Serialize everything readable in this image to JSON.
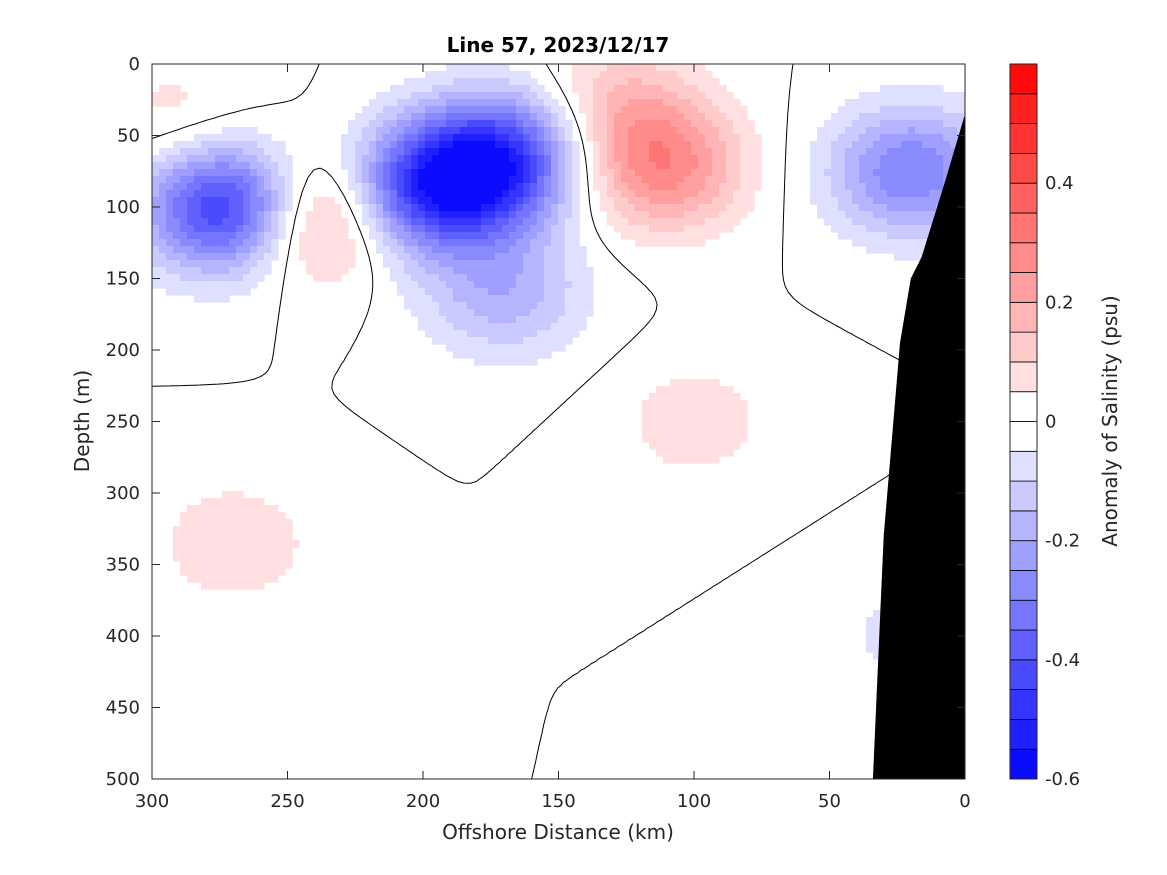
{
  "chart_data": {
    "type": "heatmap",
    "title": "Line 57, 2023/12/17",
    "xlabel": "Offshore Distance (km)",
    "ylabel": "Depth (m)",
    "colorbar_label": "Anomaly of Salinity (psu)",
    "x_reversed": true,
    "y_reversed": true,
    "xlim": [
      0,
      300
    ],
    "ylim": [
      0,
      500
    ],
    "x_ticks": [
      300,
      250,
      200,
      150,
      100,
      50,
      0
    ],
    "y_ticks": [
      0,
      50,
      100,
      150,
      200,
      250,
      300,
      350,
      400,
      450,
      500
    ],
    "clim": [
      -0.6,
      0.6
    ],
    "colorbar_step": 0.05,
    "colorbar_ticks": [
      0.4,
      0.2,
      0,
      -0.2,
      -0.4,
      -0.6
    ],
    "colorbar_tick_labels": [
      "0.4",
      "0.2",
      "0",
      "-0.2",
      "-0.4",
      "-0.6"
    ],
    "colormap": {
      "negative": "#0000ff",
      "zero": "#ffffff",
      "positive": "#ff0000"
    },
    "land_color": "#000000",
    "contour_level": 0,
    "blobs": [
      {
        "x": 272,
        "y": 100,
        "value": -0.5
      },
      {
        "x": 183,
        "y": 77,
        "value": -0.52
      },
      {
        "x": 160,
        "y": 55,
        "value": -0.2
      },
      {
        "x": 210,
        "y": 95,
        "value": -0.28
      },
      {
        "x": 170,
        "y": 160,
        "value": -0.18
      },
      {
        "x": 237,
        "y": 105,
        "value": 0.34
      },
      {
        "x": 112,
        "y": 72,
        "value": 0.27
      },
      {
        "x": 130,
        "y": 30,
        "value": 0.16
      },
      {
        "x": 100,
        "y": 250,
        "value": 0.08
      },
      {
        "x": 20,
        "y": 75,
        "value": -0.3
      },
      {
        "x": 270,
        "y": 335,
        "value": 0.09
      },
      {
        "x": 20,
        "y": 400,
        "value": -0.07
      },
      {
        "x": 290,
        "y": 40,
        "value": 0.08
      }
    ],
    "shelf": [
      {
        "x": 0,
        "depth": 35
      },
      {
        "x": 7,
        "depth": 80
      },
      {
        "x": 16,
        "depth": 135
      },
      {
        "x": 20,
        "depth": 150
      },
      {
        "x": 24,
        "depth": 195
      },
      {
        "x": 30,
        "depth": 330
      },
      {
        "x": 34,
        "depth": 500
      }
    ]
  }
}
